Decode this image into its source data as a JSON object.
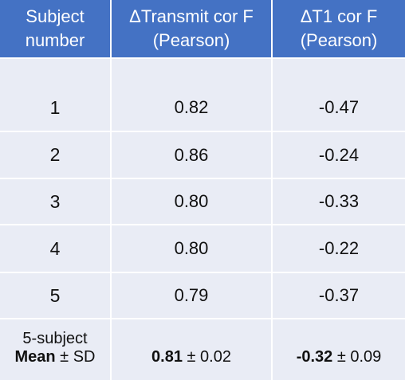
{
  "header": {
    "subject_line1": "Subject",
    "subject_line2": "number",
    "transmit_line1": "ΔTransmit cor F",
    "transmit_line2": "(Pearson)",
    "t1_line1": "ΔT1 cor F",
    "t1_line2": "(Pearson)"
  },
  "rows": [
    {
      "subject": "1",
      "transmit": "0.82",
      "t1": "-0.47"
    },
    {
      "subject": "2",
      "transmit": "0.86",
      "t1": "-0.24"
    },
    {
      "subject": "3",
      "transmit": "0.80",
      "t1": "-0.33"
    },
    {
      "subject": "4",
      "transmit": "0.80",
      "t1": "-0.22"
    },
    {
      "subject": "5",
      "transmit": "0.79",
      "t1": "-0.37"
    }
  ],
  "summary": {
    "label_line1": "5-subject",
    "label_bold": "Mean",
    "label_rest": " ± SD",
    "transmit_mean": "0.81",
    "transmit_sd": " ± 0.02",
    "t1_mean": "-0.32",
    "t1_sd": " ± 0.09"
  }
}
